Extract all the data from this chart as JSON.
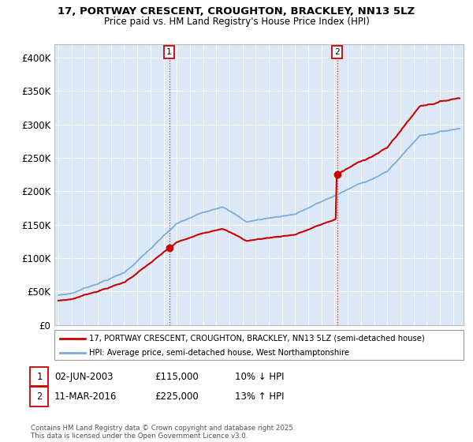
{
  "title_line1": "17, PORTWAY CRESCENT, CROUGHTON, BRACKLEY, NN13 5LZ",
  "title_line2": "Price paid vs. HM Land Registry's House Price Index (HPI)",
  "ylabel_ticks": [
    "£0",
    "£50K",
    "£100K",
    "£150K",
    "£200K",
    "£250K",
    "£300K",
    "£350K",
    "£400K"
  ],
  "ytick_values": [
    0,
    50000,
    100000,
    150000,
    200000,
    250000,
    300000,
    350000,
    400000
  ],
  "ylim": [
    0,
    420000
  ],
  "xlim_start": 1994.7,
  "xlim_end": 2025.8,
  "hpi_color": "#7aaddc",
  "price_color": "#cc0000",
  "purchase1_x": 2003.42,
  "purchase1_y": 115000,
  "purchase2_x": 2016.19,
  "purchase2_y": 225000,
  "legend_line1": "17, PORTWAY CRESCENT, CROUGHTON, BRACKLEY, NN13 5LZ (semi-detached house)",
  "legend_line2": "HPI: Average price, semi-detached house, West Northamptonshire",
  "annotation1_date": "02-JUN-2003",
  "annotation1_price": "£115,000",
  "annotation1_hpi": "10% ↓ HPI",
  "annotation2_date": "11-MAR-2016",
  "annotation2_price": "£225,000",
  "annotation2_hpi": "13% ↑ HPI",
  "footnote": "Contains HM Land Registry data © Crown copyright and database right 2025.\nThis data is licensed under the Open Government Licence v3.0.",
  "plot_bg_color": "#dce8f5"
}
